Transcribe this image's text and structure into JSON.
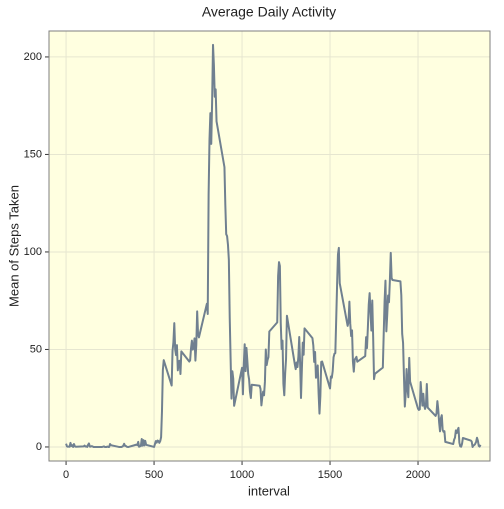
{
  "chart_data": {
    "type": "line",
    "title": "Average Daily Activity",
    "x_label": "interval",
    "y_label": "Mean of Steps Taken",
    "x": [
      0,
      5,
      10,
      15,
      20,
      25,
      30,
      35,
      40,
      45,
      50,
      55,
      100,
      105,
      110,
      115,
      120,
      125,
      130,
      135,
      140,
      145,
      150,
      155,
      200,
      205,
      210,
      215,
      220,
      225,
      230,
      235,
      240,
      245,
      250,
      255,
      300,
      305,
      310,
      315,
      320,
      325,
      330,
      335,
      340,
      345,
      350,
      355,
      400,
      405,
      410,
      415,
      420,
      425,
      430,
      435,
      440,
      445,
      450,
      455,
      500,
      505,
      510,
      515,
      520,
      525,
      530,
      535,
      540,
      545,
      550,
      555,
      600,
      605,
      610,
      615,
      620,
      625,
      630,
      635,
      640,
      645,
      650,
      655,
      700,
      705,
      710,
      715,
      720,
      725,
      730,
      735,
      740,
      745,
      750,
      755,
      800,
      805,
      810,
      815,
      820,
      825,
      830,
      835,
      840,
      845,
      850,
      855,
      900,
      905,
      910,
      915,
      920,
      925,
      930,
      935,
      940,
      945,
      950,
      955,
      1000,
      1005,
      1010,
      1015,
      1020,
      1025,
      1030,
      1035,
      1040,
      1045,
      1050,
      1055,
      1100,
      1105,
      1110,
      1115,
      1120,
      1125,
      1130,
      1135,
      1140,
      1145,
      1150,
      1155,
      1200,
      1205,
      1210,
      1215,
      1220,
      1225,
      1230,
      1235,
      1240,
      1245,
      1250,
      1255,
      1300,
      1305,
      1310,
      1315,
      1320,
      1325,
      1330,
      1335,
      1340,
      1345,
      1350,
      1355,
      1400,
      1405,
      1410,
      1415,
      1420,
      1425,
      1430,
      1435,
      1440,
      1445,
      1450,
      1455,
      1500,
      1505,
      1510,
      1515,
      1520,
      1525,
      1530,
      1535,
      1540,
      1545,
      1550,
      1555,
      1600,
      1605,
      1610,
      1615,
      1620,
      1625,
      1630,
      1635,
      1640,
      1645,
      1650,
      1655,
      1700,
      1705,
      1710,
      1715,
      1720,
      1725,
      1730,
      1735,
      1740,
      1745,
      1750,
      1755,
      1800,
      1805,
      1810,
      1815,
      1820,
      1825,
      1830,
      1835,
      1840,
      1845,
      1850,
      1855,
      1900,
      1905,
      1910,
      1915,
      1920,
      1925,
      1930,
      1935,
      1940,
      1945,
      1950,
      1955,
      2000,
      2005,
      2010,
      2015,
      2020,
      2025,
      2030,
      2035,
      2040,
      2045,
      2050,
      2055,
      2100,
      2105,
      2110,
      2115,
      2120,
      2125,
      2130,
      2135,
      2140,
      2145,
      2150,
      2155,
      2200,
      2205,
      2210,
      2215,
      2220,
      2225,
      2230,
      2235,
      2240,
      2245,
      2250,
      2255,
      2300,
      2305,
      2310,
      2315,
      2320,
      2325,
      2330,
      2335,
      2340,
      2345,
      2350,
      2355
    ],
    "series": [
      {
        "name": "steps",
        "color": "#708090",
        "values": [
          1.7,
          0.3,
          0.1,
          0.2,
          0.1,
          2.1,
          0.5,
          0.9,
          0,
          1.5,
          0.3,
          0.1,
          0.3,
          0.7,
          0.2,
          0.3,
          0,
          1.1,
          1.8,
          0.2,
          0.2,
          0.4,
          0.3,
          0,
          0,
          0,
          0.1,
          0.3,
          0,
          0,
          0,
          0.2,
          0,
          0,
          1.5,
          0.9,
          0,
          0,
          0,
          0,
          0.2,
          0.6,
          1.6,
          0.6,
          0.5,
          0.1,
          0,
          0,
          1.2,
          0.9,
          2.6,
          0.1,
          0.3,
          0.5,
          4.1,
          0.7,
          3.5,
          0.8,
          3.1,
          1.1,
          0,
          1.5,
          3.0,
          2.2,
          3.3,
          3.0,
          2.1,
          3.0,
          5.0,
          18.3,
          39.5,
          44.5,
          31.5,
          49.3,
          53.8,
          63.5,
          50.0,
          47.1,
          52.2,
          39.3,
          44.0,
          44.2,
          37.4,
          49.0,
          43.8,
          44.4,
          50.5,
          54.5,
          49.9,
          50.9,
          55.7,
          44.3,
          52.3,
          69.5,
          57.8,
          56.2,
          73.4,
          68.2,
          129.4,
          157.5,
          171.2,
          155.4,
          177.3,
          206.2,
          195.9,
          179.6,
          183.4,
          167.0,
          143.5,
          124.0,
          109.1,
          108.1,
          103.7,
          96.0,
          66.2,
          45.2,
          24.8,
          38.8,
          35.0,
          21.1,
          40.6,
          27.0,
          42.4,
          52.7,
          38.9,
          50.8,
          44.3,
          37.4,
          34.7,
          28.3,
          25.1,
          31.9,
          31.4,
          29.7,
          21.3,
          25.5,
          28.4,
          26.5,
          33.4,
          50.0,
          42.0,
          44.6,
          46.0,
          59.2,
          63.9,
          87.7,
          94.8,
          92.8,
          63.4,
          50.2,
          54.5,
          32.4,
          26.5,
          37.7,
          45.1,
          67.3,
          42.3,
          39.9,
          43.3,
          41.0,
          46.2,
          56.4,
          42.8,
          25.1,
          40.0,
          53.5,
          47.3,
          60.8,
          55.8,
          52.0,
          43.6,
          48.7,
          35.5,
          37.5,
          41.8,
          27.5,
          17.1,
          26.1,
          43.6,
          43.8,
          30.0,
          36.1,
          35.5,
          38.8,
          46.0,
          47.8,
          48.1,
          65.3,
          82.9,
          98.7,
          102.1,
          84.0,
          62.1,
          64.1,
          74.5,
          63.2,
          56.9,
          59.8,
          43.9,
          38.6,
          44.7,
          45.5,
          46.2,
          43.7,
          46.6,
          56.3,
          50.7,
          61.2,
          73.0,
          78.9,
          68.9,
          59.7,
          75.1,
          56.5,
          34.8,
          37.5,
          40.7,
          58.0,
          74.7,
          85.3,
          59.3,
          67.8,
          77.7,
          74.2,
          85.3,
          99.5,
          86.6,
          85.6,
          84.9,
          77.8,
          58.0,
          53.4,
          36.3,
          20.7,
          27.4,
          40.0,
          30.2,
          25.5,
          45.7,
          33.5,
          19.6,
          19.0,
          19.3,
          33.3,
          26.8,
          21.2,
          27.3,
          21.3,
          19.5,
          21.3,
          32.3,
          20.2,
          15.9,
          17.2,
          23.5,
          19.2,
          12.5,
          8.0,
          14.7,
          16.3,
          8.7,
          7.8,
          8.1,
          2.6,
          1.5,
          3.7,
          4.8,
          8.5,
          7.1,
          8.7,
          9.8,
          2.2,
          0.3,
          0.1,
          1.6,
          4.6,
          3.3,
          2.8,
          0,
          0.8,
          1.0,
          1.6,
          2.6,
          4.7,
          3.3,
          0.6,
          0.2,
          1.1
        ]
      }
    ],
    "xlim": [
      -97,
      2409
    ],
    "ylim": [
      -7.2,
      213.3
    ],
    "xticks": [
      0,
      500,
      1000,
      1500,
      2000
    ],
    "yticks": [
      0,
      50,
      100,
      150,
      200
    ],
    "grid": true,
    "background": "#ffffe0"
  }
}
